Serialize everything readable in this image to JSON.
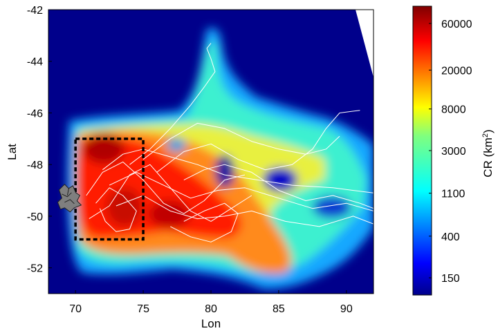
{
  "chart_data": {
    "type": "heatmap",
    "title": "",
    "xlabel": "Lon",
    "ylabel": "Lat",
    "xlim": [
      68,
      92
    ],
    "ylim": [
      -53,
      -42
    ],
    "xticks": [
      70,
      75,
      80,
      85,
      90
    ],
    "yticks": [
      -42,
      -44,
      -46,
      -48,
      -50,
      -52
    ],
    "grid": false,
    "colorbar": {
      "label": "CR (km",
      "label_sup": "2",
      "label_end": ")",
      "ticks": [
        150,
        400,
        1100,
        3000,
        8000,
        20000,
        60000
      ],
      "scale": "log",
      "range": [
        100,
        90000
      ]
    },
    "colors": {
      "background": "#00008b",
      "dashed_box": "#000000",
      "tracks": "#ffffff"
    },
    "study_box": {
      "lon": [
        70,
        75
      ],
      "lat": [
        -50.9,
        -47
      ]
    },
    "island": {
      "name": "kerguelen-island-icon",
      "lon": 69.5,
      "lat": -49.3
    },
    "tracks": [
      {
        "lon": [
          70.8,
          72.0,
          73.5,
          75.0,
          76.5,
          78.0,
          79.5,
          81.0,
          82.5
        ],
        "lat": [
          -49.2,
          -48.3,
          -47.9,
          -48.6,
          -49.5,
          -49.9,
          -49.4,
          -48.6,
          -48.4
        ]
      },
      {
        "lon": [
          71.0,
          72.5,
          74.0,
          75.5,
          77.0,
          78.5,
          80.0,
          81.5,
          83.0
        ],
        "lat": [
          -50.1,
          -49.6,
          -48.4,
          -48.0,
          -48.9,
          -49.8,
          -50.2,
          -49.7,
          -49.2
        ]
      },
      {
        "lon": [
          72.0,
          73.5,
          75.0,
          77.0,
          79.0,
          81.0,
          83.5,
          86.0,
          89.0,
          92.0
        ],
        "lat": [
          -48.2,
          -47.6,
          -47.4,
          -47.7,
          -48.0,
          -48.4,
          -48.6,
          -48.8,
          -48.9,
          -49.1
        ]
      },
      {
        "lon": [
          72.5,
          74.5,
          76.5,
          78.5,
          80.5,
          82.5,
          85.0,
          87.5,
          90.0,
          92.0
        ],
        "lat": [
          -48.8,
          -48.3,
          -48.8,
          -49.3,
          -49.0,
          -48.9,
          -49.3,
          -49.7,
          -49.5,
          -49.8
        ]
      },
      {
        "lon": [
          73.0,
          75.0,
          77.0,
          79.0,
          81.0,
          83.0,
          85.5,
          88.0,
          90.5,
          92.0
        ],
        "lat": [
          -49.6,
          -49.2,
          -49.8,
          -50.1,
          -50.0,
          -49.8,
          -50.2,
          -50.4,
          -50.0,
          -50.3
        ]
      },
      {
        "lon": [
          74.0,
          75.5,
          77.0,
          78.5,
          79.5,
          80.3,
          80.0,
          79.7,
          80.0
        ],
        "lat": [
          -48.0,
          -47.4,
          -46.6,
          -45.7,
          -45.0,
          -44.4,
          -43.9,
          -43.5,
          -43.3
        ]
      },
      {
        "lon": [
          75.0,
          77.0,
          79.0,
          81.0,
          83.0,
          85.0,
          87.0,
          88.5,
          89.5
        ],
        "lat": [
          -47.8,
          -47.0,
          -46.4,
          -46.6,
          -47.1,
          -47.4,
          -47.6,
          -47.4,
          -46.9
        ]
      },
      {
        "lon": [
          76.0,
          78.0,
          80.0,
          82.0,
          84.0,
          86.0,
          87.5,
          88.5,
          89.5,
          91.0
        ],
        "lat": [
          -48.3,
          -47.5,
          -47.2,
          -47.8,
          -48.2,
          -48.0,
          -47.4,
          -46.6,
          -46.0,
          -45.9
        ]
      },
      {
        "lon": [
          71.5,
          72.5,
          73.5,
          74.5,
          74.0,
          73.0,
          72.2,
          71.8
        ],
        "lat": [
          -49.5,
          -48.9,
          -49.2,
          -49.8,
          -50.5,
          -50.6,
          -50.2,
          -49.7
        ]
      },
      {
        "lon": [
          77.0,
          78.5,
          80.0,
          81.5,
          82.0,
          81.0,
          79.5,
          78.0
        ],
        "lat": [
          -50.4,
          -50.8,
          -51.0,
          -50.6,
          -49.9,
          -49.5,
          -49.8,
          -50.2
        ]
      },
      {
        "lon": [
          78.0,
          79.5,
          81.0,
          83.0,
          85.0,
          87.0,
          89.0,
          91.0,
          92.0
        ],
        "lat": [
          -48.6,
          -48.2,
          -48.0,
          -48.3,
          -49.0,
          -49.4,
          -49.2,
          -49.5,
          -49.7
        ]
      }
    ]
  }
}
